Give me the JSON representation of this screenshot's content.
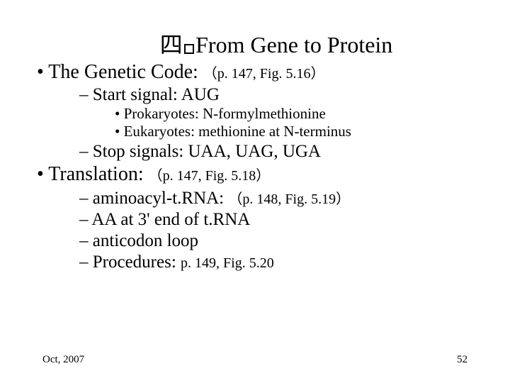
{
  "title": {
    "prefix": "四",
    "text": "From Gene to Protein"
  },
  "items": {
    "l1a_main": "The Genetic Code: ",
    "l1a_ref": "（p. 147, Fig. 5.16）",
    "l2a": "Start signal: AUG",
    "l3a": "Prokaryotes: N-formylmethionine",
    "l3b": "Eukaryotes: methionine at N-terminus",
    "l2b": "Stop signals: UAA, UAG, UGA",
    "l1b_main": "Translation: ",
    "l1b_ref": "（p. 147, Fig. 5.18）",
    "l2c_main": "aminoacyl-t.RNA: ",
    "l2c_ref": "（p. 148, Fig. 5.19）",
    "l2d": "AA at 3' end of t.RNA",
    "l2e": "anticodon loop",
    "l2f_main": "Procedures: ",
    "l2f_ref": "p. 149, Fig. 5.20"
  },
  "footer": {
    "date": "Oct, 2007",
    "page": "52"
  },
  "style": {
    "background": "#ffffff",
    "text_color": "#000000",
    "font_family": "Times New Roman",
    "title_fontsize": 32,
    "l1_fontsize": 28,
    "l1_ref_fontsize": 20,
    "l2_fontsize": 25,
    "l2_ref_fontsize": 20,
    "l3_fontsize": 21,
    "footer_fontsize": 15
  }
}
